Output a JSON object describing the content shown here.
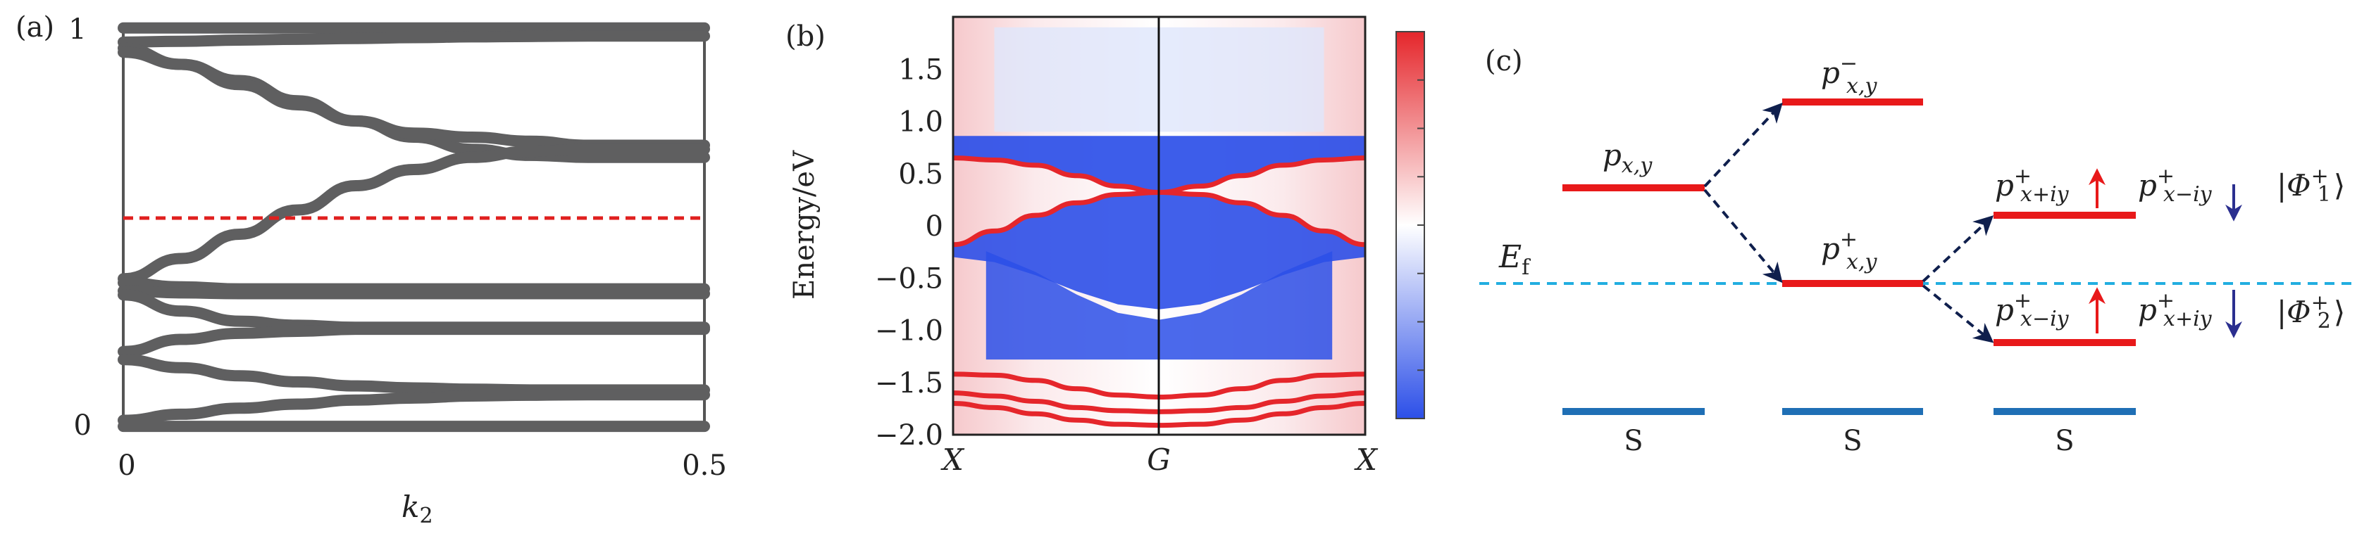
{
  "panel_a": {
    "label": "(a)",
    "y_ticks": [
      "1",
      "0"
    ],
    "x_ticks": [
      "0",
      "0.5"
    ],
    "xlabel_base": "k",
    "xlabel_sub": "2",
    "chart_data": {
      "type": "line",
      "xlabel": "k2",
      "xlim": [
        0,
        0.5
      ],
      "ylim": [
        0,
        1
      ],
      "fermi_level_y": 0.52,
      "series_color": "#5f5f60",
      "reference_line_color": "#e0201f",
      "x": [
        0,
        0.05,
        0.1,
        0.15,
        0.2,
        0.25,
        0.3,
        0.35,
        0.4,
        0.45,
        0.5
      ],
      "series": [
        {
          "values": [
            0.99,
            0.99,
            0.99,
            0.99,
            0.99,
            0.99,
            0.99,
            0.99,
            0.99,
            0.99,
            0.99
          ]
        },
        {
          "values": [
            0.955,
            0.957,
            0.96,
            0.962,
            0.964,
            0.966,
            0.968,
            0.969,
            0.97,
            0.97,
            0.97
          ]
        },
        {
          "values": [
            0.94,
            0.9,
            0.86,
            0.81,
            0.76,
            0.72,
            0.69,
            0.675,
            0.67,
            0.67,
            0.67
          ]
        },
        {
          "values": [
            0.93,
            0.9,
            0.85,
            0.8,
            0.76,
            0.73,
            0.72,
            0.71,
            0.7,
            0.7,
            0.7
          ]
        },
        {
          "values": [
            0.37,
            0.42,
            0.48,
            0.54,
            0.6,
            0.64,
            0.67,
            0.685,
            0.69,
            0.69,
            0.69
          ]
        },
        {
          "values": [
            0.36,
            0.35,
            0.345,
            0.345,
            0.345,
            0.345,
            0.345,
            0.345,
            0.345,
            0.345,
            0.345
          ]
        },
        {
          "values": [
            0.34,
            0.335,
            0.333,
            0.333,
            0.333,
            0.333,
            0.333,
            0.333,
            0.333,
            0.333,
            0.333
          ]
        },
        {
          "values": [
            0.33,
            0.29,
            0.265,
            0.255,
            0.25,
            0.25,
            0.25,
            0.25,
            0.25,
            0.25,
            0.25
          ]
        },
        {
          "values": [
            0.19,
            0.22,
            0.235,
            0.24,
            0.245,
            0.245,
            0.245,
            0.245,
            0.245,
            0.245,
            0.245
          ]
        },
        {
          "values": [
            0.17,
            0.15,
            0.13,
            0.115,
            0.105,
            0.1,
            0.097,
            0.095,
            0.095,
            0.095,
            0.095
          ]
        },
        {
          "values": [
            0.02,
            0.035,
            0.05,
            0.06,
            0.07,
            0.075,
            0.08,
            0.082,
            0.083,
            0.083,
            0.083
          ]
        },
        {
          "values": [
            0.005,
            0.005,
            0.005,
            0.005,
            0.005,
            0.005,
            0.005,
            0.005,
            0.005,
            0.005,
            0.005
          ]
        }
      ]
    }
  },
  "panel_b": {
    "label": "(b)",
    "ylabel": "Energy/eV",
    "y_ticks": [
      "1.5",
      "1.0",
      "0.5",
      "0",
      "−0.5",
      "−1.0",
      "−1.5",
      "−2.0"
    ],
    "x_ticks": [
      "X",
      "G",
      "X"
    ],
    "chart_data": {
      "type": "heatmap",
      "ylabel": "Energy/eV",
      "x_categories": [
        "X",
        "G",
        "X"
      ],
      "ylim": [
        -2.0,
        2.0
      ],
      "y_ticks": [
        1.5,
        1.0,
        0.5,
        0,
        -0.5,
        -1.0,
        -1.5,
        -2.0
      ],
      "colormap": [
        "#2c4fe8",
        "#ffffff",
        "#e5262b"
      ],
      "bands": [
        {
          "x": [
            0,
            0.1,
            0.2,
            0.3,
            0.4,
            0.5,
            0.6,
            0.7,
            0.8,
            0.9,
            1.0
          ],
          "values": [
            0.65,
            0.63,
            0.58,
            0.48,
            0.38,
            0.32,
            0.38,
            0.48,
            0.58,
            0.63,
            0.65
          ]
        },
        {
          "x": [
            0,
            0.1,
            0.2,
            0.3,
            0.4,
            0.5,
            0.6,
            0.7,
            0.8,
            0.9,
            1.0
          ],
          "values": [
            -0.18,
            -0.05,
            0.1,
            0.22,
            0.3,
            0.32,
            0.3,
            0.22,
            0.1,
            -0.05,
            -0.18
          ]
        },
        {
          "x": [
            0,
            0.1,
            0.2,
            0.3,
            0.4,
            0.5,
            0.6,
            0.7,
            0.8,
            0.9,
            1.0
          ],
          "values": [
            -1.42,
            -1.43,
            -1.48,
            -1.56,
            -1.62,
            -1.64,
            -1.62,
            -1.56,
            -1.48,
            -1.43,
            -1.42
          ]
        },
        {
          "x": [
            0,
            0.1,
            0.2,
            0.3,
            0.4,
            0.5,
            0.6,
            0.7,
            0.8,
            0.9,
            1.0
          ],
          "values": [
            -1.6,
            -1.63,
            -1.68,
            -1.74,
            -1.77,
            -1.78,
            -1.77,
            -1.74,
            -1.68,
            -1.63,
            -1.6
          ]
        },
        {
          "x": [
            0,
            0.1,
            0.2,
            0.3,
            0.4,
            0.5,
            0.6,
            0.7,
            0.8,
            0.9,
            1.0
          ],
          "values": [
            -1.7,
            -1.74,
            -1.8,
            -1.86,
            -1.9,
            -1.91,
            -1.9,
            -1.86,
            -1.8,
            -1.74,
            -1.7
          ]
        }
      ]
    }
  },
  "panel_c": {
    "label": "(c)",
    "fermi_label": "E",
    "fermi_sub": "f",
    "s_label": "S",
    "pxy": {
      "base": "p",
      "sub": "x,y"
    },
    "pminus": {
      "base": "p",
      "sup": "−",
      "sub": "x,y"
    },
    "pplus": {
      "base": "p",
      "sup": "+",
      "sub": "x,y"
    },
    "p_xpiy_up": {
      "base": "p",
      "sup": "+",
      "sub": "x+iy"
    },
    "p_xmiy_dn": {
      "base": "p",
      "sup": "+",
      "sub": "x−iy"
    },
    "p_xmiy_up": {
      "base": "p",
      "sup": "+",
      "sub": "x−iy"
    },
    "p_xpiy_dn": {
      "base": "p",
      "sup": "+",
      "sub": "x+iy"
    },
    "phi1": {
      "base": "|Φ",
      "sup": "+",
      "sub": "1",
      "close": "⟩"
    },
    "phi2": {
      "base": "|Φ",
      "sup": "+",
      "sub": "2",
      "close": "⟩"
    },
    "colors": {
      "level_red": "#e8191a",
      "level_blue": "#1f6fb5",
      "fermi": "#22aee0",
      "arrow_dash": "#0f1f4d",
      "spin_up": "#e8191a",
      "spin_down": "#2b2f8f"
    }
  }
}
